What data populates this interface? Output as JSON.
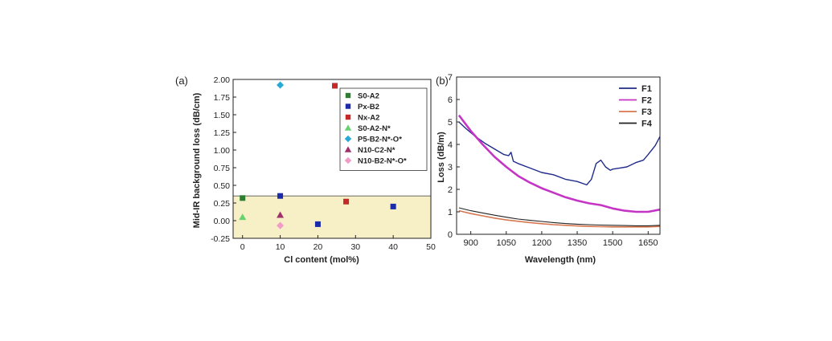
{
  "chart_data": [
    {
      "panel_label": "(a)",
      "type": "scatter",
      "xlabel": "Cl  content (mol%)",
      "ylabel": "Mid-IR background loss (dB/cm)",
      "xlim": [
        -2.5,
        50
      ],
      "ylim": [
        -0.25,
        2.0
      ],
      "xticks": [
        "0",
        "10",
        "20",
        "30",
        "40",
        "50"
      ],
      "yticks": [
        "-0.25",
        "0.00",
        "0.25",
        "0.50",
        "0.75",
        "1.00",
        "1.25",
        "1.50",
        "1.75",
        "2.00"
      ],
      "shaded_band": {
        "from": -0.25,
        "to": 0.35,
        "color": "#f7efc6"
      },
      "reference_line": 0.35,
      "legend_position": "top-right",
      "series": [
        {
          "name": "S0-A2",
          "marker": "square",
          "color": "#2e7d32",
          "points": [
            [
              0,
              0.32
            ]
          ]
        },
        {
          "name": "Px-B2",
          "marker": "square",
          "color": "#1a2aa8",
          "points": [
            [
              10,
              0.35
            ],
            [
              20,
              -0.05
            ],
            [
              40,
              0.2
            ]
          ]
        },
        {
          "name": "Nx-A2",
          "marker": "square",
          "color": "#c62828",
          "points": [
            [
              24.5,
              1.91
            ],
            [
              27.5,
              0.27
            ]
          ]
        },
        {
          "name": "S0-A2-N*",
          "marker": "triangle",
          "color": "#66d36e",
          "points": [
            [
              0,
              0.05
            ]
          ]
        },
        {
          "name": "P5-B2-N*-O*",
          "marker": "diamond",
          "color": "#26a9d6",
          "points": [
            [
              10,
              1.92
            ]
          ]
        },
        {
          "name": "N10-C2-N*",
          "marker": "triangle",
          "color": "#a0306a",
          "points": [
            [
              10,
              0.08
            ]
          ]
        },
        {
          "name": "N10-B2-N*-O*",
          "marker": "diamond",
          "color": "#f29ac8",
          "points": [
            [
              10,
              -0.07
            ]
          ]
        }
      ]
    },
    {
      "panel_label": "(b)",
      "type": "line",
      "xlabel": "Wavelength (nm)",
      "ylabel": "Loss (dB/m)",
      "xlim": [
        840,
        1700
      ],
      "ylim": [
        0,
        7
      ],
      "xticks": [
        "900",
        "1050",
        "1200",
        "1350",
        "1500",
        "1650"
      ],
      "yticks": [
        "0",
        "1",
        "2",
        "3",
        "4",
        "5",
        "6",
        "7"
      ],
      "legend_position": "top-right",
      "series": [
        {
          "name": "F1",
          "color": "#1f2b8a",
          "x": [
            850,
            880,
            920,
            960,
            1000,
            1040,
            1060,
            1070,
            1080,
            1100,
            1150,
            1200,
            1250,
            1300,
            1350,
            1390,
            1410,
            1430,
            1450,
            1470,
            1490,
            1500,
            1530,
            1560,
            1600,
            1630,
            1650,
            1680,
            1700
          ],
          "y": [
            5.0,
            4.7,
            4.35,
            4.05,
            3.8,
            3.55,
            3.5,
            3.65,
            3.25,
            3.15,
            2.95,
            2.75,
            2.65,
            2.45,
            2.35,
            2.2,
            2.45,
            3.15,
            3.3,
            3.0,
            2.85,
            2.9,
            2.95,
            3.0,
            3.2,
            3.3,
            3.55,
            3.95,
            4.35
          ]
        },
        {
          "name": "F2",
          "color": "#c535c5",
          "x": [
            850,
            900,
            950,
            1000,
            1050,
            1100,
            1150,
            1200,
            1250,
            1300,
            1350,
            1400,
            1450,
            1500,
            1550,
            1600,
            1650,
            1700
          ],
          "y": [
            5.3,
            4.6,
            4.0,
            3.45,
            3.0,
            2.6,
            2.3,
            2.05,
            1.85,
            1.65,
            1.5,
            1.38,
            1.3,
            1.15,
            1.05,
            1.0,
            1.0,
            1.1
          ]
        },
        {
          "name": "F3",
          "color": "#d7774f",
          "x": [
            850,
            900,
            950,
            1000,
            1050,
            1100,
            1150,
            1200,
            1250,
            1300,
            1350,
            1400,
            1450,
            1500,
            1550,
            1600,
            1650,
            1700
          ],
          "y": [
            1.05,
            0.92,
            0.82,
            0.72,
            0.64,
            0.58,
            0.52,
            0.47,
            0.43,
            0.4,
            0.37,
            0.35,
            0.34,
            0.33,
            0.33,
            0.33,
            0.33,
            0.35
          ]
        },
        {
          "name": "F4",
          "color": "#222222",
          "x": [
            850,
            900,
            950,
            1000,
            1050,
            1100,
            1150,
            1200,
            1250,
            1300,
            1350,
            1400,
            1450,
            1500,
            1550,
            1600,
            1650,
            1700
          ],
          "y": [
            1.18,
            1.05,
            0.95,
            0.85,
            0.76,
            0.68,
            0.62,
            0.57,
            0.52,
            0.48,
            0.45,
            0.43,
            0.41,
            0.4,
            0.39,
            0.38,
            0.38,
            0.4
          ]
        }
      ]
    }
  ]
}
